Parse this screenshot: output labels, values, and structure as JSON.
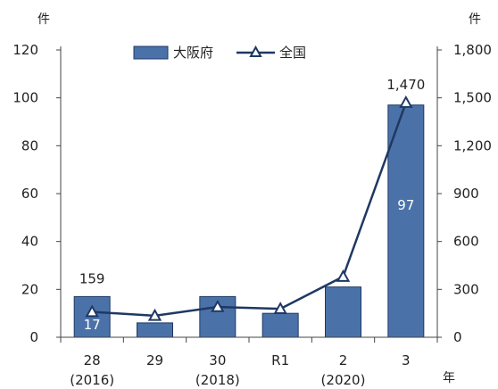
{
  "chart_data": {
    "type": "bar",
    "categories": [
      {
        "main": "28",
        "sub": "(2016)"
      },
      {
        "main": "29",
        "sub": ""
      },
      {
        "main": "30",
        "sub": "(2018)"
      },
      {
        "main": "R1",
        "sub": ""
      },
      {
        "main": "2",
        "sub": "(2020)"
      },
      {
        "main": "3",
        "sub": ""
      }
    ],
    "y_left_unit": "件",
    "y_right_unit": "件",
    "x_unit": "年",
    "y_left_ticks": [
      "0",
      "20",
      "40",
      "60",
      "80",
      "100",
      "120"
    ],
    "y_right_ticks": [
      "0",
      "300",
      "600",
      "900",
      "1,200",
      "1,500",
      "1,800"
    ],
    "ylim_left": [
      0,
      120
    ],
    "ylim_right": [
      0,
      1800
    ],
    "legend_position": "top",
    "grid": false,
    "series": [
      {
        "name": "大阪府",
        "type": "bar",
        "axis": "left",
        "color": "#4a72a8",
        "values": [
          17,
          6,
          17,
          10,
          21,
          97
        ]
      },
      {
        "name": "全国",
        "type": "line",
        "axis": "right",
        "marker": "triangle",
        "color": "#1f3864",
        "values": [
          159,
          135,
          190,
          178,
          380,
          1470
        ]
      }
    ],
    "annotations": [
      {
        "series": 1,
        "index": 0,
        "text": "159"
      },
      {
        "series": 1,
        "index": 5,
        "text": "1,470"
      },
      {
        "series": 0,
        "index": 0,
        "text": "17"
      },
      {
        "series": 0,
        "index": 5,
        "text": "97"
      }
    ]
  }
}
